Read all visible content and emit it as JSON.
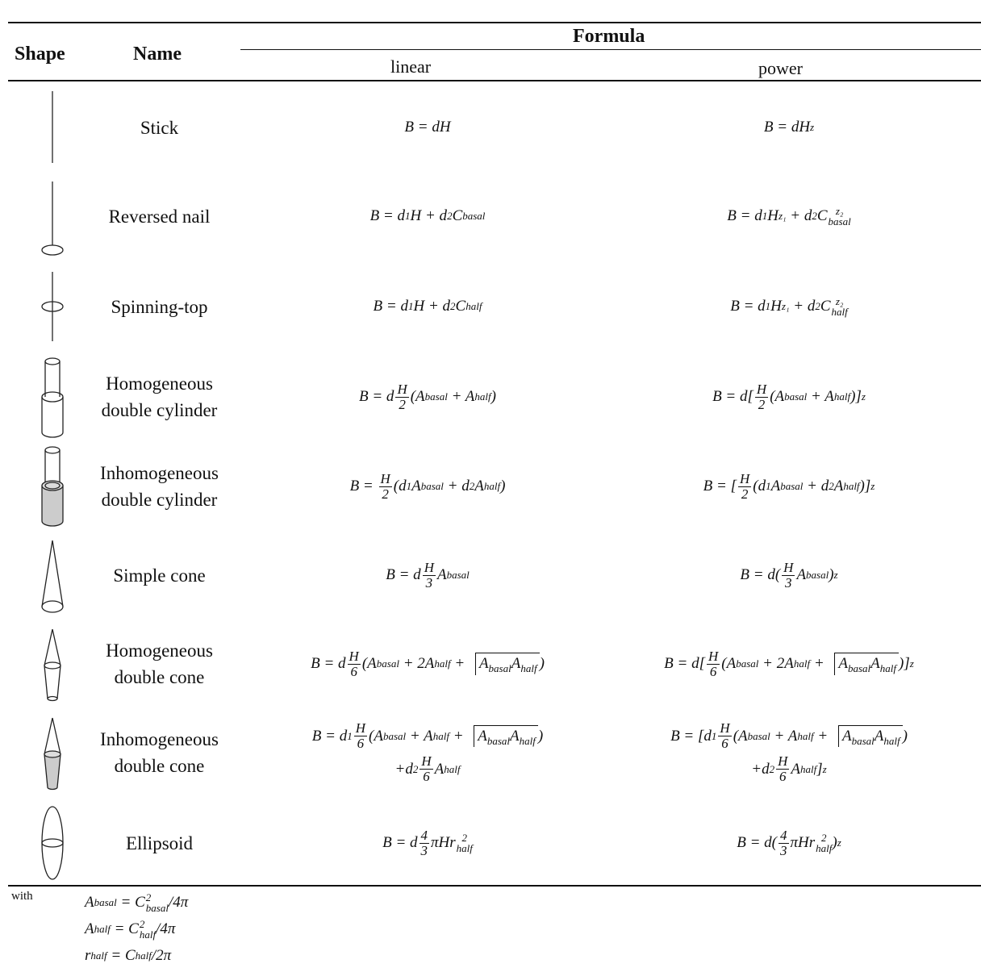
{
  "table": {
    "headers": {
      "shape": "Shape",
      "name": "Name",
      "formula": "Formula",
      "linear": "linear",
      "power": "power"
    },
    "rows": [
      {
        "name": [
          "Stick"
        ],
        "linear": [
          [
            "B = dH"
          ]
        ],
        "power": [
          [
            "B = dH",
            {
              "sup": "z"
            }
          ]
        ]
      },
      {
        "name": [
          "Reversed nail"
        ],
        "linear": [
          [
            "B = d",
            {
              "sub": "1"
            },
            "H + d",
            {
              "sub": "2"
            },
            "C",
            {
              "sub": "basal"
            }
          ]
        ],
        "power": [
          [
            "B = d",
            {
              "sub": "1"
            },
            "H",
            {
              "sup": "z₁"
            },
            " + d",
            {
              "sub": "2"
            },
            "C",
            {
              "subsup": [
                "basal",
                "z₂"
              ]
            }
          ]
        ]
      },
      {
        "name": [
          "Spinning-top"
        ],
        "linear": [
          [
            "B = d",
            {
              "sub": "1"
            },
            "H + d",
            {
              "sub": "2"
            },
            "C",
            {
              "sub": "half"
            }
          ]
        ],
        "power": [
          [
            "B = d",
            {
              "sub": "1"
            },
            "H",
            {
              "sup": "z₁"
            },
            " + d",
            {
              "sub": "2"
            },
            "C",
            {
              "subsup": [
                "half",
                "z₂"
              ]
            }
          ]
        ]
      },
      {
        "name": [
          "Homogeneous",
          "double cylinder"
        ],
        "linear": [
          [
            "B = d",
            {
              "frac": [
                "H",
                "2"
              ]
            },
            "(A",
            {
              "sub": "basal"
            },
            " + A",
            {
              "sub": "half"
            },
            ")"
          ]
        ],
        "power": [
          [
            "B = d[",
            {
              "frac": [
                "H",
                "2"
              ]
            },
            "(A",
            {
              "sub": "basal"
            },
            " + A",
            {
              "sub": "half"
            },
            ")]",
            {
              "sup": "z"
            }
          ]
        ]
      },
      {
        "name": [
          "Inhomogeneous",
          "double cylinder"
        ],
        "linear": [
          [
            "B = ",
            {
              "frac": [
                "H",
                "2"
              ]
            },
            "(d",
            {
              "sub": "1"
            },
            "A",
            {
              "sub": "basal"
            },
            " + d",
            {
              "sub": "2"
            },
            "A",
            {
              "sub": "half"
            },
            ")"
          ]
        ],
        "power": [
          [
            "B = [",
            {
              "frac": [
                "H",
                "2"
              ]
            },
            "(d",
            {
              "sub": "1"
            },
            "A",
            {
              "sub": "basal"
            },
            " + d",
            {
              "sub": "2"
            },
            "A",
            {
              "sub": "half"
            },
            ")]",
            {
              "sup": "z"
            }
          ]
        ]
      },
      {
        "name": [
          "Simple cone"
        ],
        "linear": [
          [
            "B = d",
            {
              "frac": [
                "H",
                "3"
              ]
            },
            "A",
            {
              "sub": "basal"
            }
          ]
        ],
        "power": [
          [
            "B = d(",
            {
              "frac": [
                "H",
                "3"
              ]
            },
            "A",
            {
              "sub": "basal"
            },
            ")",
            {
              "sup": "z"
            }
          ]
        ]
      },
      {
        "name": [
          "Homogeneous",
          "double cone"
        ],
        "linear": [
          [
            "B = d",
            {
              "frac": [
                "H",
                "6"
              ]
            },
            "(A",
            {
              "sub": "basal"
            },
            " + 2A",
            {
              "sub": "half"
            },
            " + ",
            {
              "sqrt": [
                "A",
                {
                  "sub": "basal"
                },
                "A",
                {
                  "sub": "half"
                }
              ]
            },
            ")"
          ]
        ],
        "power": [
          [
            "B = d[",
            {
              "frac": [
                "H",
                "6"
              ]
            },
            "(A",
            {
              "sub": "basal"
            },
            " + 2A",
            {
              "sub": "half"
            },
            " + ",
            {
              "sqrt": [
                "A",
                {
                  "sub": "basal"
                },
                "A",
                {
                  "sub": "half"
                }
              ]
            },
            ")]",
            {
              "sup": "z"
            }
          ]
        ]
      },
      {
        "name": [
          "Inhomogeneous",
          "double cone"
        ],
        "linear": [
          [
            "B = d",
            {
              "sub": "1"
            },
            {
              "frac": [
                "H",
                "6"
              ]
            },
            "(A",
            {
              "sub": "basal"
            },
            " + A",
            {
              "sub": "half"
            },
            " + ",
            {
              "sqrt": [
                "A",
                {
                  "sub": "basal"
                },
                "A",
                {
                  "sub": "half"
                }
              ]
            },
            ")"
          ],
          [
            "+d",
            {
              "sub": "2"
            },
            {
              "frac": [
                "H",
                "6"
              ]
            },
            "A",
            {
              "sub": "half"
            }
          ]
        ],
        "power": [
          [
            "B = [d",
            {
              "sub": "1"
            },
            {
              "frac": [
                "H",
                "6"
              ]
            },
            "(A",
            {
              "sub": "basal"
            },
            " + A",
            {
              "sub": "half"
            },
            " + ",
            {
              "sqrt": [
                "A",
                {
                  "sub": "basal"
                },
                "A",
                {
                  "sub": "half"
                }
              ]
            },
            ")"
          ],
          [
            "+d",
            {
              "sub": "2"
            },
            {
              "frac": [
                "H",
                "6"
              ]
            },
            "A",
            {
              "sub": "half"
            },
            "]",
            {
              "sup": "z"
            }
          ]
        ]
      },
      {
        "name": [
          "Ellipsoid"
        ],
        "linear": [
          [
            "B = d",
            {
              "frac": [
                "4",
                "3"
              ]
            },
            "πHr",
            {
              "subsup": [
                "half",
                "2"
              ]
            }
          ]
        ],
        "power": [
          [
            "B = d(",
            {
              "frac": [
                "4",
                "3"
              ]
            },
            "πHr",
            {
              "subsup": [
                "half",
                "2"
              ]
            },
            ")",
            {
              "sup": "z"
            }
          ]
        ]
      }
    ]
  },
  "footnote": {
    "label": "with",
    "lines": [
      [
        "A",
        {
          "sub": "basal"
        },
        " = C",
        {
          "subsup": [
            "basal",
            "2"
          ]
        },
        "/4π"
      ],
      [
        "A",
        {
          "sub": "half"
        },
        " = C",
        {
          "subsup": [
            "half",
            "2"
          ]
        },
        "/4π"
      ],
      [
        "r",
        {
          "sub": "half"
        },
        " = C",
        {
          "sub": "half"
        },
        "/2π"
      ]
    ]
  }
}
